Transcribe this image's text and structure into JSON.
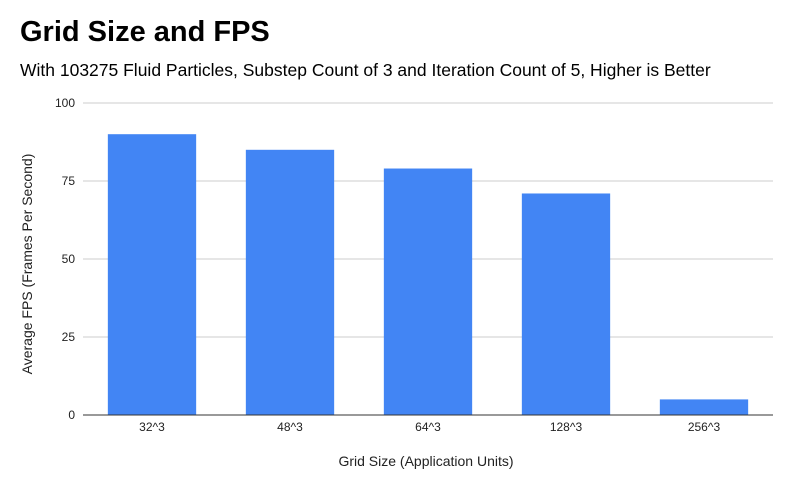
{
  "chart_data": {
    "type": "bar",
    "title": "Grid Size and FPS",
    "subtitle": "With 103275 Fluid Particles, Substep Count of 3 and Iteration Count of 5, Higher is Better",
    "xlabel": "Grid Size (Application Units)",
    "ylabel": "Average FPS (Frames Per Second)",
    "categories": [
      "32^3",
      "48^3",
      "64^3",
      "128^3",
      "256^3"
    ],
    "values": [
      90,
      85,
      79,
      71,
      5
    ],
    "ylim": [
      0,
      100
    ],
    "yticks": [
      0,
      25,
      50,
      75,
      100
    ],
    "grid": true,
    "legend": "none",
    "bar_color": "#4285f4",
    "grid_color": "#cccccc",
    "axis_color": "#333333"
  }
}
